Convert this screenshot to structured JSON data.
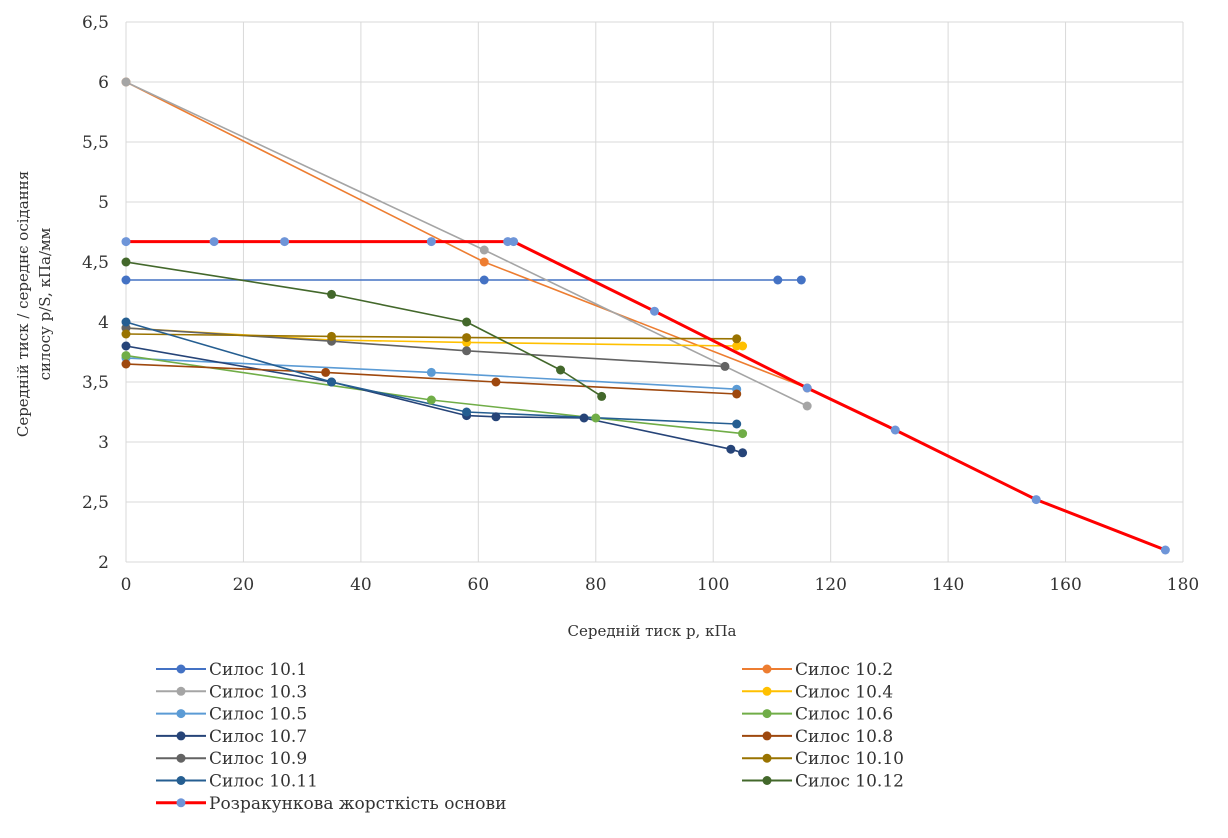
{
  "chart_data": {
    "type": "line",
    "title": "",
    "xlabel": "Середній тиск р, кПа",
    "ylabel_lines": [
      "Середній тиск / середнє осідання",
      "силосу р/S, кПа/мм"
    ],
    "xlim": [
      0,
      180
    ],
    "ylim": [
      2,
      6.5
    ],
    "x_ticks": [
      0,
      20,
      40,
      60,
      80,
      100,
      120,
      140,
      160,
      180
    ],
    "x_tick_labels": [
      "0",
      "20",
      "40",
      "60",
      "80",
      "100",
      "120",
      "140",
      "160",
      "180"
    ],
    "y_ticks": [
      2,
      2.5,
      3,
      3.5,
      4,
      4.5,
      5,
      5.5,
      6,
      6.5
    ],
    "y_tick_labels": [
      "2",
      "2,5",
      "3",
      "3,5",
      "4",
      "4,5",
      "5",
      "5,5",
      "6",
      "6,5"
    ],
    "grid": true,
    "legend_position": "bottom",
    "series": [
      {
        "name": "Силос 10.1",
        "color": "#4472C4",
        "points": [
          [
            0,
            4.35
          ],
          [
            61,
            4.35
          ],
          [
            111,
            4.35
          ],
          [
            115,
            4.35
          ]
        ]
      },
      {
        "name": "Силос 10.2",
        "color": "#ED7D31",
        "points": [
          [
            0,
            6.0
          ],
          [
            61,
            4.5
          ],
          [
            116,
            3.45
          ]
        ]
      },
      {
        "name": "Силос 10.3",
        "color": "#A5A5A5",
        "points": [
          [
            0,
            6.0
          ],
          [
            61,
            4.6
          ],
          [
            116,
            3.3
          ]
        ]
      },
      {
        "name": "Силос 10.4",
        "color": "#FFC000",
        "points": [
          [
            0,
            3.95
          ],
          [
            35,
            3.85
          ],
          [
            58,
            3.83
          ],
          [
            104,
            3.8
          ],
          [
            105,
            3.8
          ]
        ]
      },
      {
        "name": "Силос 10.5",
        "color": "#5B9BD5",
        "points": [
          [
            0,
            3.7
          ],
          [
            52,
            3.58
          ],
          [
            104,
            3.44
          ]
        ]
      },
      {
        "name": "Силос 10.6",
        "color": "#70AD47",
        "points": [
          [
            0,
            3.72
          ],
          [
            52,
            3.35
          ],
          [
            80,
            3.2
          ],
          [
            105,
            3.07
          ]
        ]
      },
      {
        "name": "Силос 10.7",
        "color": "#264478",
        "points": [
          [
            0,
            3.8
          ],
          [
            35,
            3.5
          ],
          [
            58,
            3.22
          ],
          [
            63,
            3.21
          ],
          [
            78,
            3.2
          ],
          [
            103,
            2.94
          ],
          [
            105,
            2.91
          ]
        ]
      },
      {
        "name": "Силос 10.8",
        "color": "#9E480E",
        "points": [
          [
            0,
            3.65
          ],
          [
            34,
            3.58
          ],
          [
            63,
            3.5
          ],
          [
            104,
            3.4
          ]
        ]
      },
      {
        "name": "Силос 10.9",
        "color": "#636363",
        "points": [
          [
            0,
            3.95
          ],
          [
            35,
            3.84
          ],
          [
            58,
            3.76
          ],
          [
            102,
            3.63
          ]
        ]
      },
      {
        "name": "Силос 10.10",
        "color": "#997300",
        "points": [
          [
            0,
            3.9
          ],
          [
            35,
            3.88
          ],
          [
            58,
            3.87
          ],
          [
            104,
            3.86
          ]
        ]
      },
      {
        "name": "Силос 10.11",
        "color": "#255E91",
        "points": [
          [
            0,
            4.0
          ],
          [
            35,
            3.5
          ],
          [
            58,
            3.25
          ],
          [
            104,
            3.15
          ]
        ]
      },
      {
        "name": "Силос 10.12",
        "color": "#43682B",
        "points": [
          [
            0,
            4.5
          ],
          [
            35,
            4.23
          ],
          [
            58,
            4.0
          ],
          [
            74,
            3.6
          ],
          [
            81,
            3.38
          ]
        ]
      },
      {
        "name": "Розракункова жорсткість основи",
        "color": "#FF0000",
        "marker_color": "#6E95D8",
        "points": [
          [
            0,
            4.67
          ],
          [
            15,
            4.67
          ],
          [
            27,
            4.67
          ],
          [
            52,
            4.67
          ],
          [
            65,
            4.67
          ],
          [
            66,
            4.67
          ],
          [
            90,
            4.09
          ],
          [
            116,
            3.45
          ],
          [
            131,
            3.1
          ],
          [
            155,
            2.52
          ],
          [
            177,
            2.1
          ]
        ]
      }
    ]
  }
}
